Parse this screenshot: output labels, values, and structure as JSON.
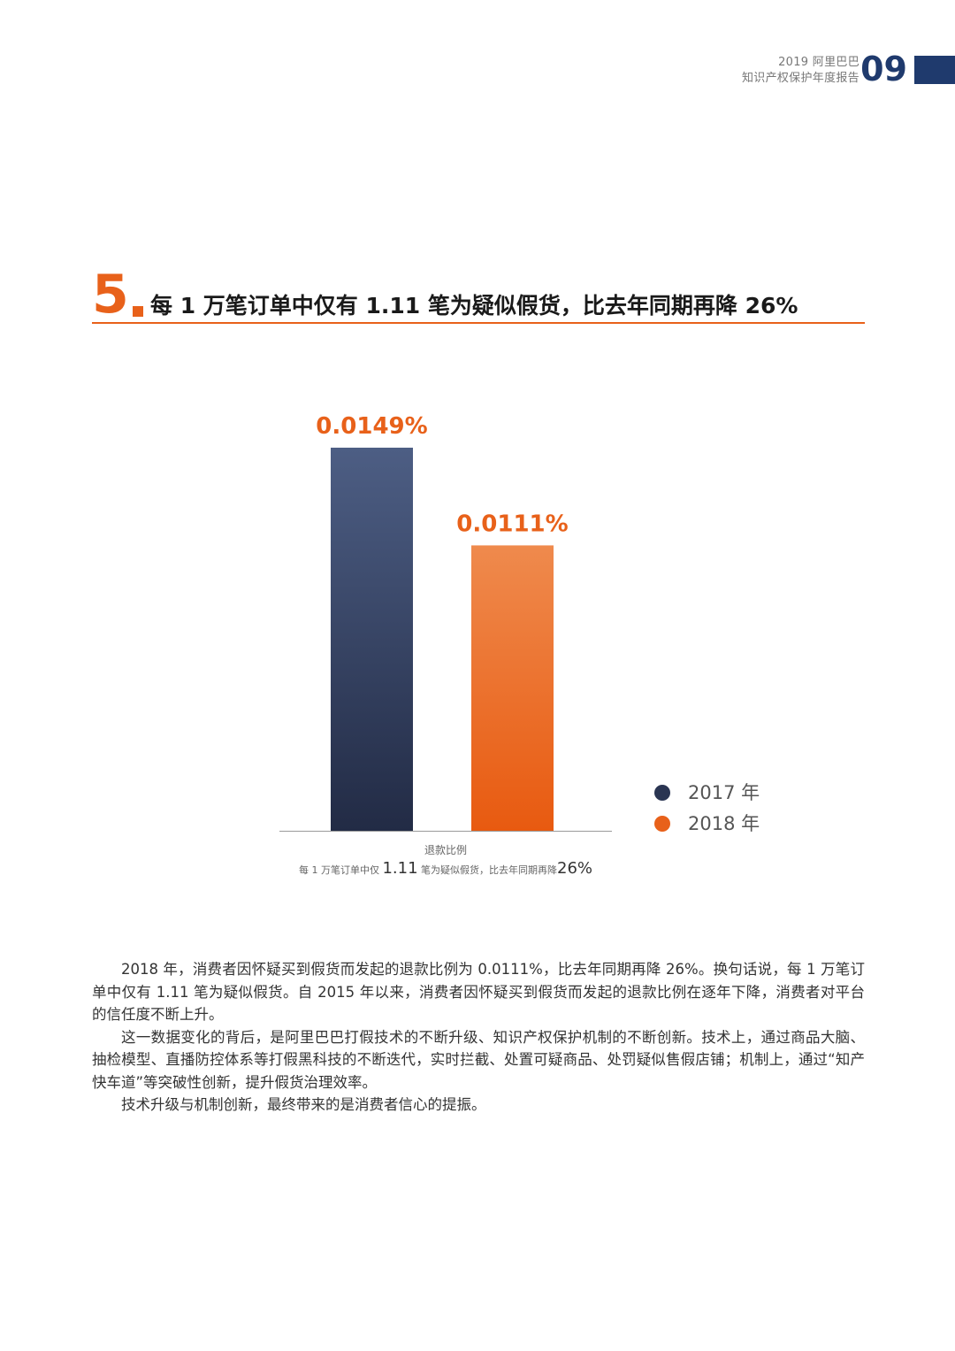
{
  "header": {
    "title_line1": "2019 阿里巴巴",
    "title_line2": "知识产权保护年度报告",
    "page_number": "09"
  },
  "section": {
    "number": "5",
    "title": "每 1 万笔订单中仅有 1.11 笔为疑似假货，比去年同期再降 26%"
  },
  "chart_data": {
    "type": "bar",
    "categories": [
      "2017 年",
      "2018 年"
    ],
    "values": [
      0.0149,
      0.0111
    ],
    "value_labels": [
      "0.0149%",
      "0.0111%"
    ],
    "unit": "%",
    "ylim": [
      0,
      0.0186
    ],
    "colors": [
      "#2a3552",
      "#e8611a"
    ],
    "legend": [
      "2017 年",
      "2018 年"
    ],
    "legend_position": "right",
    "grid": false,
    "xlabel": "退款比例"
  },
  "caption": {
    "line1": "退款比例",
    "part_a": "每 1 万笔订单中仅 ",
    "part_b": "1.11",
    "part_c": " 笔为疑似假货，比去年同期再降",
    "part_d": "26%"
  },
  "body": {
    "p1": "2018 年，消费者因怀疑买到假货而发起的退款比例为 0.0111%，比去年同期再降 26%。换句话说，每 1 万笔订单中仅有 1.11 笔为疑似假货。自 2015 年以来，消费者因怀疑买到假货而发起的退款比例在逐年下降，消费者对平台的信任度不断上升。",
    "p2": "这一数据变化的背后，是阿里巴巴打假技术的不断升级、知识产权保护机制的不断创新。技术上，通过商品大脑、抽检模型、直播防控体系等打假黑科技的不断迭代，实时拦截、处置可疑商品、处罚疑似售假店铺；机制上，通过“知产快车道”等突破性创新，提升假货治理效率。",
    "p3": "技术升级与机制创新，最终带来的是消费者信心的提振。"
  }
}
